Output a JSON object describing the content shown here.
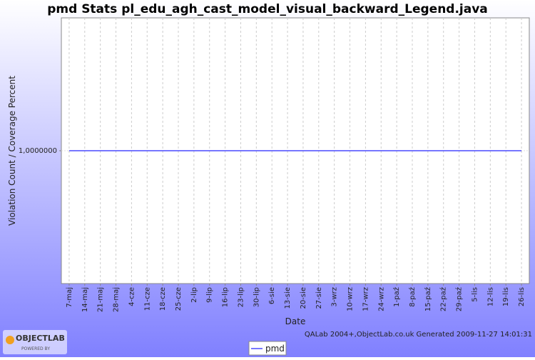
{
  "chart_data": {
    "type": "line",
    "title": "pmd  Stats pl_edu_agh_cast_model_visual_backward_Legend.java",
    "x_label": "Date",
    "y_label": "Violation Count / Coverage Percent",
    "footer": "QALab 2004+,ObjectLab.co.uk Generated 2009-11-27 14:01:31",
    "categories": [
      "7-maj",
      "14-maj",
      "21-maj",
      "28-maj",
      "4-cze",
      "11-cze",
      "18-cze",
      "25-cze",
      "2-lip",
      "9-lip",
      "16-lip",
      "23-lip",
      "30-lip",
      "6-sie",
      "13-sie",
      "20-sie",
      "27-sie",
      "3-wrz",
      "10-wrz",
      "17-wrz",
      "24-wrz",
      "1-paź",
      "8-paź",
      "15-paź",
      "22-paź",
      "29-paź",
      "5-lis",
      "12-lis",
      "19-lis",
      "26-lis"
    ],
    "series": [
      {
        "name": "pmd",
        "color": "#4a4aff",
        "values": [
          1,
          1,
          1,
          1,
          1,
          1,
          1,
          1,
          1,
          1,
          1,
          1,
          1,
          1,
          1,
          1,
          1,
          1,
          1,
          1,
          1,
          1,
          1,
          1,
          1,
          1,
          1,
          1,
          1,
          1
        ]
      }
    ],
    "ylim": [
      0,
      2
    ],
    "yticks": [
      {
        "value": 1,
        "label": "1,0000000"
      }
    ],
    "grid": true
  },
  "logo": {
    "name": "OBJECTLAB",
    "tagline": "POWERED BY"
  }
}
